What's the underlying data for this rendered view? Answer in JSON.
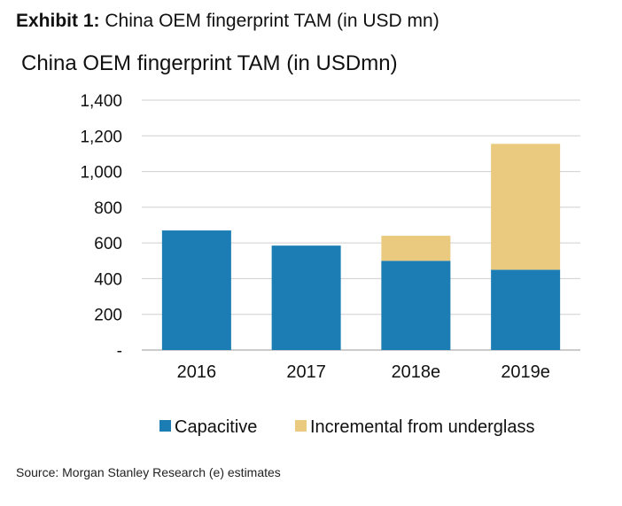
{
  "exhibit": {
    "label": "Exhibit 1:",
    "title": "China OEM fingerprint TAM (in USD mn)"
  },
  "chart_data": {
    "type": "bar",
    "stacked": true,
    "title": "China OEM fingerprint TAM (in USDmn)",
    "categories": [
      "2016",
      "2017",
      "2018e",
      "2019e"
    ],
    "series": [
      {
        "name": "Capacitive",
        "color": "#1B7DB4",
        "values": [
          670,
          585,
          500,
          450
        ]
      },
      {
        "name": "Incremental from underglass",
        "color": "#E9CA7E",
        "values": [
          0,
          0,
          140,
          705
        ]
      }
    ],
    "ylim": [
      0,
      1400
    ],
    "yticks": [
      0,
      200,
      400,
      600,
      800,
      1000,
      1200,
      1400
    ],
    "ytick_labels": [
      "-",
      "200",
      "400",
      "600",
      "800",
      "1,000",
      "1,200",
      "1,400"
    ],
    "grid": true,
    "legend_position": "bottom"
  },
  "source": "Source: Morgan Stanley Research (e) estimates"
}
